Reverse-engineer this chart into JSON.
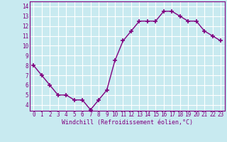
{
  "x": [
    0,
    1,
    2,
    3,
    4,
    5,
    6,
    7,
    8,
    9,
    10,
    11,
    12,
    13,
    14,
    15,
    16,
    17,
    18,
    19,
    20,
    21,
    22,
    23
  ],
  "y": [
    8.0,
    7.0,
    6.0,
    5.0,
    5.0,
    4.5,
    4.5,
    3.5,
    4.5,
    5.5,
    8.5,
    10.5,
    11.5,
    12.5,
    12.5,
    12.5,
    13.5,
    13.5,
    13.0,
    12.5,
    12.5,
    11.5,
    11.0,
    10.5
  ],
  "line_color": "#800080",
  "marker": "+",
  "marker_size": 4,
  "linewidth": 1.0,
  "markeredgewidth": 1.2,
  "xlabel": "Windchill (Refroidissement éolien,°C)",
  "xlabel_fontsize": 6.0,
  "ylabel_ticks": [
    4,
    5,
    6,
    7,
    8,
    9,
    10,
    11,
    12,
    13,
    14
  ],
  "xtick_labels": [
    "0",
    "1",
    "2",
    "3",
    "4",
    "5",
    "6",
    "7",
    "8",
    "9",
    "10",
    "11",
    "12",
    "13",
    "14",
    "15",
    "16",
    "17",
    "18",
    "19",
    "20",
    "21",
    "22",
    "23"
  ],
  "ylim": [
    3.4,
    14.5
  ],
  "xlim": [
    -0.5,
    23.5
  ],
  "bg_color": "#c8eaf0",
  "plot_bg_color": "#c8eaf0",
  "grid_color": "#ffffff",
  "tick_color": "#800080",
  "tick_fontsize": 5.5,
  "spine_color": "#800080"
}
